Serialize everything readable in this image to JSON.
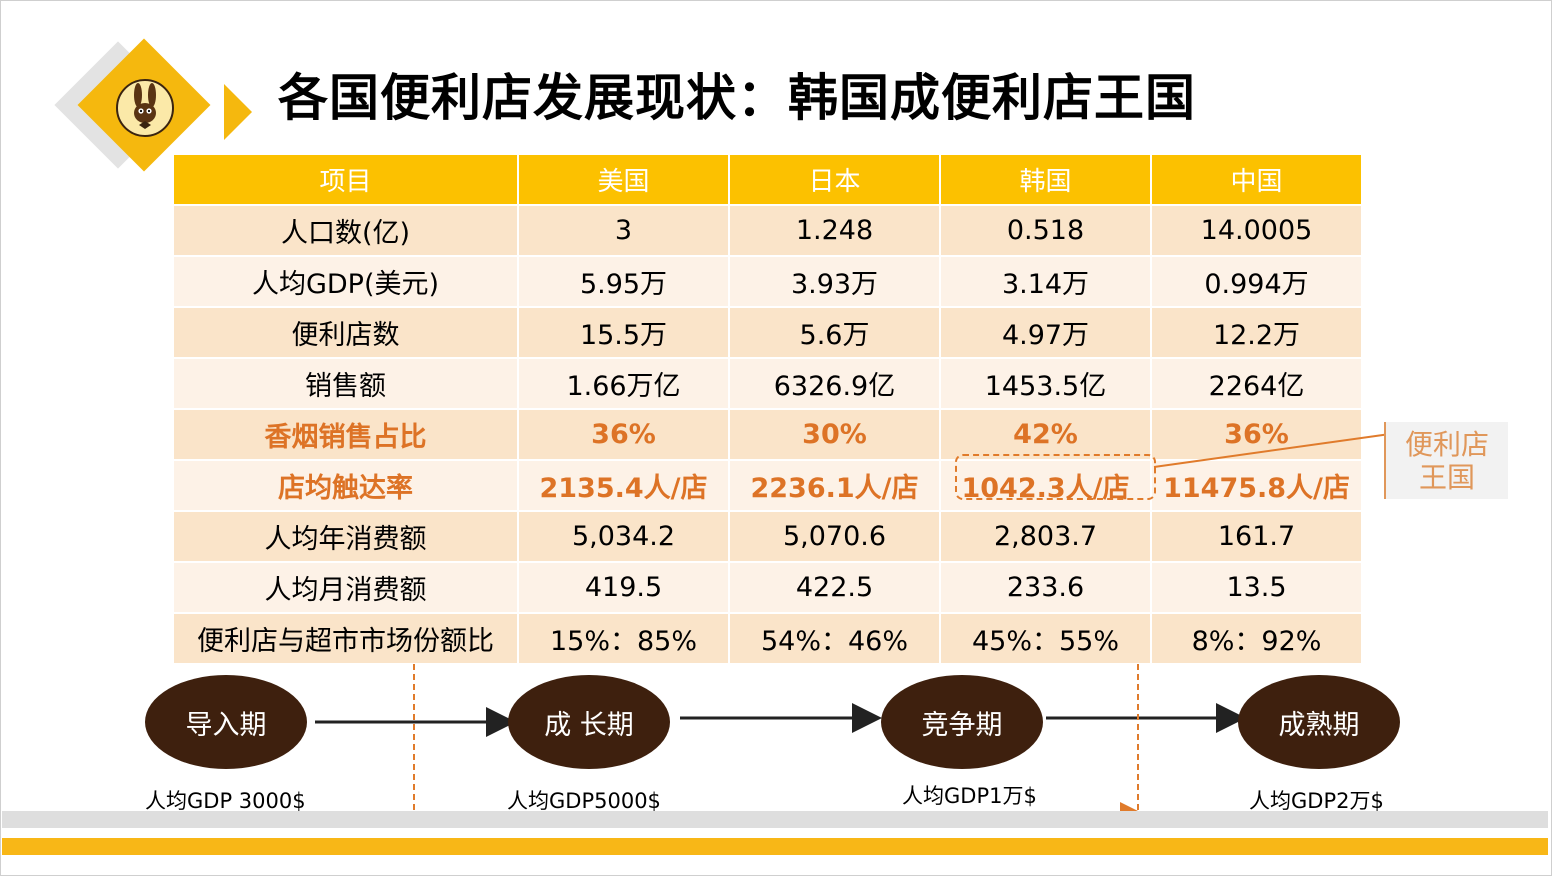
{
  "title": "各国便利店发展现状：韩国成便利店王国",
  "table": {
    "headers": [
      "项目",
      "美国",
      "日本",
      "韩国",
      "中国"
    ],
    "rows": [
      {
        "label": "人口数(亿)",
        "values": [
          "3",
          "1.248",
          "0.518",
          "14.0005"
        ]
      },
      {
        "label": "人均GDP(美元)",
        "values": [
          "5.95万",
          "3.93万",
          "3.14万",
          "0.994万"
        ]
      },
      {
        "label": "便利店数",
        "values": [
          "15.5万",
          "5.6万",
          "4.97万",
          "12.2万"
        ]
      },
      {
        "label": "销售额",
        "values": [
          "1.66万亿",
          "6326.9亿",
          "1453.5亿",
          "2264亿"
        ]
      },
      {
        "label": "香烟销售占比",
        "values": [
          "36%",
          "30%",
          "42%",
          "36%"
        ]
      },
      {
        "label": "店均触达率",
        "values": [
          "2135.4人/店",
          "2236.1人/店",
          "1042.3人/店",
          "11475.8人/店"
        ]
      },
      {
        "label": "人均年消费额",
        "values": [
          "5,034.2",
          "5,070.6",
          "2,803.7",
          "161.7"
        ]
      },
      {
        "label": "人均月消费额",
        "values": [
          "419.5",
          "422.5",
          "233.6",
          "13.5"
        ]
      },
      {
        "label": "便利店与超市市场份额比",
        "values": [
          "15%：85%",
          "54%：46%",
          "45%：55%",
          "8%：92%"
        ]
      }
    ]
  },
  "callout": {
    "line1": "便利店",
    "line2": "王国"
  },
  "stages": [
    {
      "label": "导入期",
      "gdp": "人均GDP 3000$"
    },
    {
      "label": "成 长期",
      "gdp": "人均GDP5000$"
    },
    {
      "label": "竞争期",
      "gdp": "人均GDP1万$"
    },
    {
      "label": "成熟期",
      "gdp": "人均GDP2万$"
    }
  ],
  "colors": {
    "accent": "#f5b80e",
    "header_bg": "#fcc100",
    "highlight_text": "#dd7326",
    "stage_bg": "#3e200e"
  },
  "logo_icon": "rabbit-logo-icon"
}
